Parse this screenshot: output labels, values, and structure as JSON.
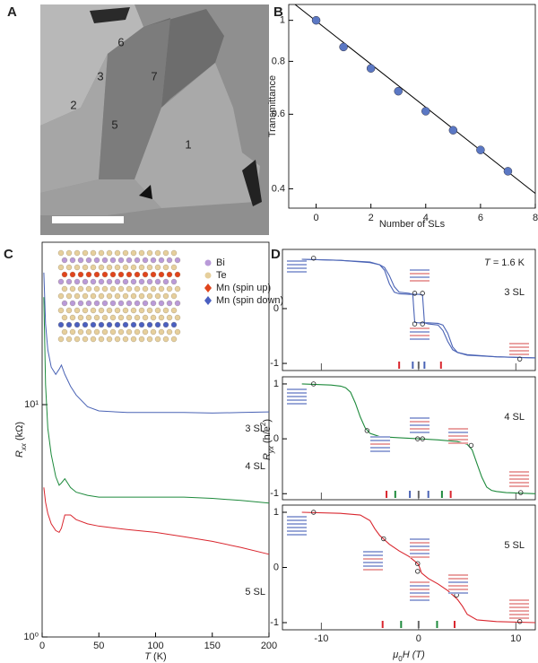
{
  "panel_a": {
    "panel": "A",
    "labels": [
      "6",
      "3",
      "7",
      "2",
      "5",
      "1"
    ]
  },
  "chart_data": [
    {
      "panel": "B",
      "type": "scatter",
      "xlabel": "Number of SLs",
      "ylabel": "Transmittance",
      "x": [
        0,
        1,
        2,
        3,
        4,
        5,
        6,
        7
      ],
      "values": [
        1,
        0.865,
        0.77,
        0.68,
        0.61,
        0.55,
        0.494,
        0.44
      ],
      "color": "#5b78c4",
      "fit": {
        "x": [
          -1,
          8
        ],
        "values": [
          1.12,
          0.39
        ],
        "color": "#000000"
      },
      "xlim": [
        -1,
        8
      ],
      "xticks": [
        0,
        2,
        4,
        6,
        8
      ],
      "ylim": [
        0.36,
        1.09
      ],
      "yticks": [
        0.4,
        0.6,
        0.8,
        1
      ],
      "log_y": true
    },
    {
      "panel": "C",
      "type": "line",
      "xlabel": [
        "T",
        " (K)"
      ],
      "ylabel": [
        "R",
        "xx",
        " (kΩ)"
      ],
      "x": [
        1.5,
        3,
        5,
        8,
        12,
        15,
        17,
        20,
        25,
        30,
        40,
        50,
        75,
        100,
        125,
        150,
        175,
        200
      ],
      "series": [
        {
          "name": "3 SL",
          "color": "#4a63b5",
          "values": [
            37,
            22.3,
            17.2,
            14.5,
            13.5,
            14.2,
            14.8,
            13.5,
            12.0,
            11.0,
            9.8,
            9.4,
            9.25,
            9.25,
            9.25,
            9.2,
            9.25,
            9.3
          ]
        },
        {
          "name": "4 SL",
          "color": "#1e8a3c",
          "values": [
            29,
            12.2,
            7.9,
            6.1,
            4.9,
            4.5,
            4.6,
            4.8,
            4.4,
            4.2,
            4.07,
            4.0,
            4.0,
            4.0,
            4.0,
            3.95,
            3.87,
            3.77
          ]
        },
        {
          "name": "5 SL",
          "color": "#d9262e",
          "values": [
            4.4,
            3.8,
            3.4,
            3.07,
            2.87,
            2.82,
            2.94,
            3.35,
            3.35,
            3.2,
            3.07,
            3.0,
            2.9,
            2.82,
            2.7,
            2.58,
            2.43,
            2.27
          ]
        }
      ],
      "xlim": [
        0,
        200
      ],
      "xticks": [
        0,
        50,
        100,
        150,
        200
      ],
      "ylim": [
        1,
        50
      ],
      "yticks": [
        {
          "value": 1,
          "label": "10⁰"
        },
        {
          "value": 10,
          "label": "10¹"
        }
      ],
      "log_y": true,
      "inset_legend": [
        {
          "label": "Bi",
          "color": "#b99ad8"
        },
        {
          "label": "Te",
          "color": "#e6cf9c"
        },
        {
          "label": "Mn (spin up)",
          "color": "#e0441c"
        },
        {
          "label": "Mn (spin down)",
          "color": "#4a5fc0"
        }
      ]
    },
    {
      "panel": "D",
      "type": "line",
      "label": "3 SL",
      "annotation": [
        "T",
        " = 1.6 K"
      ],
      "color": "#4a63b5",
      "sweeps": [
        {
          "x": [
            -12,
            -8,
            -5,
            -4,
            -3.5,
            -3,
            -2.5,
            -2,
            -1,
            0,
            0.4,
            0.5,
            0.6,
            1,
            2,
            2.5,
            3,
            3.5,
            4,
            5,
            8,
            12
          ],
          "values": [
            0.9,
            0.88,
            0.85,
            0.8,
            0.7,
            0.45,
            0.3,
            0.27,
            0.26,
            0.26,
            0.25,
            0,
            -0.26,
            -0.28,
            -0.3,
            -0.4,
            -0.6,
            -0.75,
            -0.8,
            -0.84,
            -0.88,
            -0.9
          ]
        },
        {
          "x": [
            -12,
            -8,
            -5,
            -4,
            -3.5,
            -3,
            -2.5,
            -2,
            -1,
            -0.6,
            -0.5,
            -0.4,
            0,
            1,
            2,
            2.5,
            3,
            3.5,
            4,
            5,
            8,
            12
          ],
          "values": [
            0.9,
            0.88,
            0.84,
            0.8,
            0.75,
            0.6,
            0.4,
            0.3,
            0.28,
            0.26,
            0,
            -0.25,
            -0.26,
            -0.26,
            -0.27,
            -0.3,
            -0.45,
            -0.7,
            -0.8,
            -0.85,
            -0.88,
            -0.9
          ]
        }
      ],
      "points": {
        "x": [
          -10.8,
          -0.4,
          0.4,
          -0.4,
          0.4,
          10.4
        ],
        "values": [
          0.92,
          0.28,
          0.28,
          -0.28,
          -0.28,
          -0.92
        ]
      },
      "field_markers": {
        "x": [
          -2.0,
          -0.6,
          0,
          0.6,
          2.3
        ],
        "colors": [
          "#d9262e",
          "#4a63b5",
          "#666666",
          "#4a63b5",
          "#d9262e"
        ]
      },
      "xlim": [
        -14,
        12
      ],
      "ylim": [
        -1.13,
        1.08
      ],
      "yticks": [
        0,
        -1
      ]
    },
    {
      "type": "line",
      "label": "4 SL",
      "color": "#1e8a3c",
      "ylabel": [
        "R",
        "yx",
        " (h/e",
        "2",
        ")"
      ],
      "sweeps": [
        {
          "x": [
            -12,
            -9,
            -8,
            -7.5,
            -7,
            -6.5,
            -6,
            -5.5,
            -5,
            -4,
            -2,
            0,
            2,
            4,
            5,
            5.5,
            6,
            6.5,
            7,
            7.5,
            8,
            9,
            12
          ],
          "values": [
            1,
            0.98,
            0.96,
            0.93,
            0.85,
            0.65,
            0.4,
            0.2,
            0.1,
            0.04,
            0.02,
            0,
            -0.02,
            -0.05,
            -0.1,
            -0.2,
            -0.45,
            -0.7,
            -0.88,
            -0.94,
            -0.96,
            -0.98,
            -1
          ]
        }
      ],
      "points": {
        "x": [
          -10.8,
          -5.3,
          -0.1,
          0.4,
          5.4,
          10.5
        ],
        "values": [
          1,
          0.15,
          0,
          0,
          -0.12,
          -0.98
        ]
      },
      "field_markers": {
        "x": [
          -3.3,
          -2.4,
          -0.9,
          0,
          1.0,
          2.4,
          3.3
        ],
        "colors": [
          "#d9262e",
          "#1e8a3c",
          "#4a63b5",
          "#666666",
          "#4a63b5",
          "#1e8a3c",
          "#d9262e"
        ]
      },
      "xlim": [
        -14,
        12
      ],
      "ylim": [
        -1.11,
        1.13
      ],
      "yticks": [
        1,
        0,
        -1
      ]
    },
    {
      "type": "line",
      "label": "5 SL",
      "color": "#d9262e",
      "xlabel": [
        "μ",
        "0",
        "H (T)"
      ],
      "sweeps": [
        {
          "x": [
            -12,
            -8,
            -6,
            -5,
            -4.5,
            -4,
            -3.5,
            -3,
            -2,
            -1,
            -0.3,
            0,
            0.3,
            1,
            2,
            3,
            3.5,
            4,
            4.5,
            5,
            6,
            8,
            12
          ],
          "values": [
            1,
            0.98,
            0.95,
            0.85,
            0.7,
            0.58,
            0.5,
            0.42,
            0.3,
            0.2,
            0.1,
            0.05,
            -0.1,
            -0.2,
            -0.3,
            -0.42,
            -0.5,
            -0.58,
            -0.7,
            -0.85,
            -0.95,
            -0.98,
            -1
          ]
        }
      ],
      "points": {
        "x": [
          -10.8,
          -3.6,
          -0.1,
          -0.1,
          3.9,
          10.4
        ],
        "values": [
          1,
          0.52,
          0.07,
          -0.07,
          -0.5,
          -0.98
        ]
      },
      "field_markers": {
        "x": [
          -3.7,
          -1.8,
          0,
          1.9,
          3.7
        ],
        "colors": [
          "#d9262e",
          "#1e8a3c",
          "#666666",
          "#1e8a3c",
          "#d9262e"
        ]
      },
      "xlim": [
        -14,
        12
      ],
      "xticks": [
        -10,
        0,
        10
      ],
      "ylim": [
        -1.13,
        1.13
      ],
      "yticks": [
        1,
        0,
        -1
      ]
    }
  ]
}
